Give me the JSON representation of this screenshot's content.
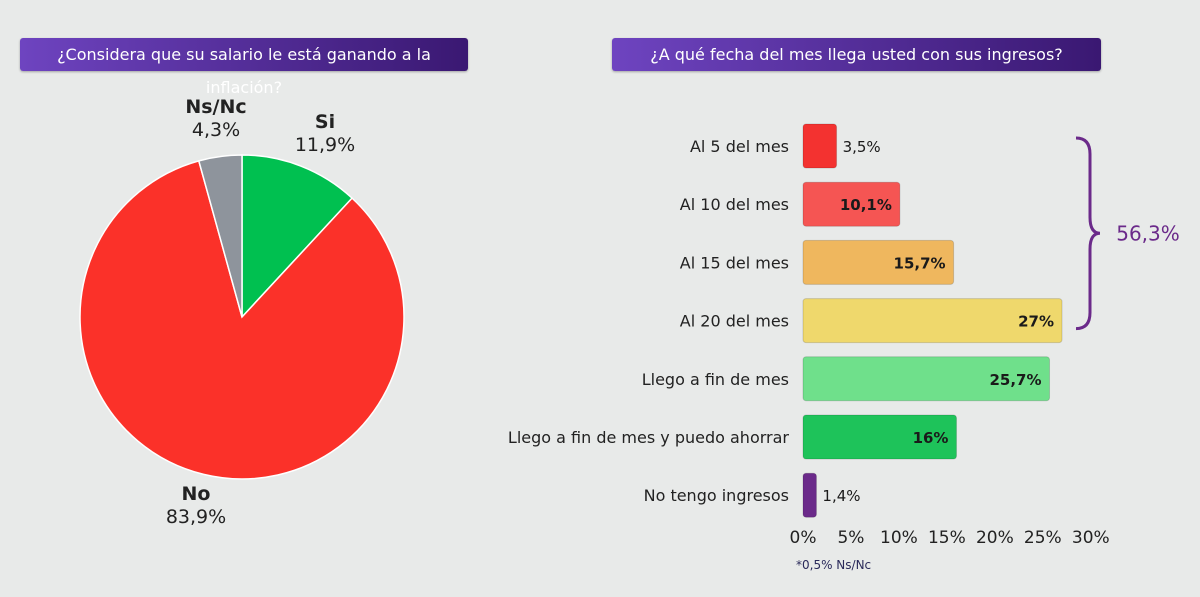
{
  "chart_data": [
    {
      "type": "pie",
      "title": "¿Considera que su salario le está ganando a la inflación?",
      "slices": [
        {
          "label": "Si",
          "value": 11.9,
          "value_label": "11,9%",
          "color": "#00c050"
        },
        {
          "label": "No",
          "value": 83.9,
          "value_label": "83,9%",
          "color": "#fb3129"
        },
        {
          "label": "Ns/Nc",
          "value": 4.3,
          "value_label": "4,3%",
          "color": "#8e949c"
        }
      ],
      "start": "top",
      "direction": "clockwise"
    },
    {
      "type": "bar",
      "orientation": "horizontal",
      "title": "¿A qué fecha del mes llega usted con sus ingresos?",
      "categories": [
        "Al 5 del mes",
        "Al 10 del mes",
        "Al 15 del mes",
        "Al 20 del mes",
        "Llego a fin de mes",
        "Llego a fin de mes y puedo ahorrar",
        "No tengo ingresos"
      ],
      "values": [
        3.5,
        10.1,
        15.7,
        27,
        25.7,
        16,
        1.4
      ],
      "value_labels": [
        "3,5%",
        "10,1%",
        "15,7%",
        "27%",
        "25,7%",
        "16%",
        "1,4%"
      ],
      "colors": [
        "#f33230",
        "#f55553",
        "#efb75e",
        "#efd86c",
        "#6fe08b",
        "#1ec35a",
        "#6b2a8a"
      ],
      "xlim": [
        0,
        30
      ],
      "xticks": [
        "0%",
        "5%",
        "10%",
        "15%",
        "20%",
        "25%",
        "30%"
      ],
      "grid": false,
      "annotation": {
        "label": "56,3%",
        "spans": [
          "Al 5 del mes",
          "Al 20 del mes"
        ],
        "color": "#6b2a8a"
      },
      "footnote": "*0,5% Ns/Nc"
    }
  ]
}
